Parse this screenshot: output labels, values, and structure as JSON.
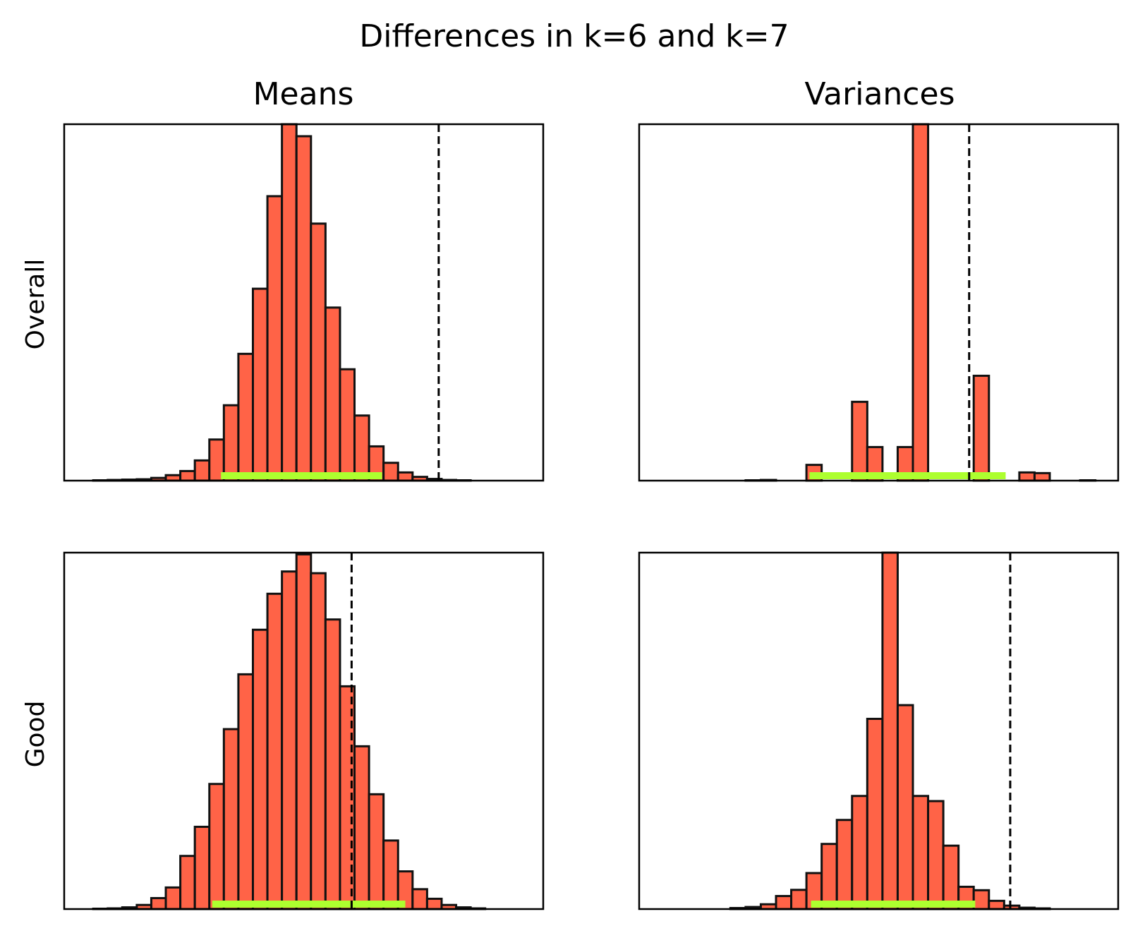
{
  "figure": {
    "title": "Differences in k=6 and k=7",
    "column_titles": [
      "Means",
      "Variances"
    ],
    "row_labels": [
      "Overall",
      "Good"
    ],
    "colors": {
      "bar_fill": "#ff6347",
      "bar_edge": "#111111",
      "interval": "#adff2f",
      "reference_line": "#000000"
    }
  },
  "chart_data": [
    {
      "type": "bar",
      "row": "Overall",
      "column": "Means",
      "x_range": [
        0,
        33
      ],
      "y_range": [
        0,
        104
      ],
      "values": [
        0,
        0.1,
        0.2,
        0.3,
        0.4,
        0.8,
        1.6,
        2.8,
        5.9,
        12,
        22,
        37,
        56,
        83,
        104,
        100.5,
        75,
        50.5,
        32.5,
        19,
        10,
        5.2,
        2.4,
        1.1,
        0.5,
        0.2,
        0.1,
        0,
        0,
        0
      ],
      "interval": [
        10.8,
        21.9
      ],
      "reference_line": 25.8
    },
    {
      "type": "bar",
      "row": "Overall",
      "column": "Variances",
      "x_range": [
        0,
        31.5
      ],
      "y_range": [
        0,
        104
      ],
      "values": [
        0,
        0,
        0,
        0,
        0,
        0,
        0.1,
        0.2,
        0,
        0,
        4.6,
        0,
        0,
        23,
        9.8,
        0,
        9.8,
        104,
        0,
        0,
        0,
        30.6,
        0,
        0,
        2.4,
        2.2,
        0,
        0,
        0.1,
        0
      ],
      "interval": [
        11.2,
        24.1
      ],
      "reference_line": 21.7
    },
    {
      "type": "bar",
      "row": "Good",
      "column": "Means",
      "x_range": [
        0,
        33
      ],
      "y_range": [
        0,
        104
      ],
      "values": [
        0,
        0.1,
        0.2,
        0.5,
        1.2,
        3.2,
        6.3,
        15.5,
        24,
        36.5,
        52.5,
        68.5,
        81.5,
        92,
        98.5,
        103.5,
        98,
        84.5,
        65,
        47.5,
        33.5,
        20,
        11,
        5.8,
        3,
        1.2,
        0.5,
        0.2,
        0,
        0
      ],
      "interval": [
        10.2,
        23.5
      ],
      "reference_line": 19.8
    },
    {
      "type": "bar",
      "row": "Good",
      "column": "Variances",
      "x_range": [
        0,
        31.5
      ],
      "y_range": [
        0,
        104
      ],
      "values": [
        0,
        0,
        0,
        0,
        0,
        0.3,
        0.6,
        1.4,
        3.8,
        5.6,
        10.5,
        19,
        26,
        33,
        55.5,
        104,
        59.5,
        33,
        31.5,
        18.5,
        6.5,
        5.5,
        2.4,
        1,
        0.4,
        0.2,
        0,
        0,
        0,
        0
      ],
      "interval": [
        11.3,
        22.1
      ],
      "reference_line": 24.4
    }
  ]
}
